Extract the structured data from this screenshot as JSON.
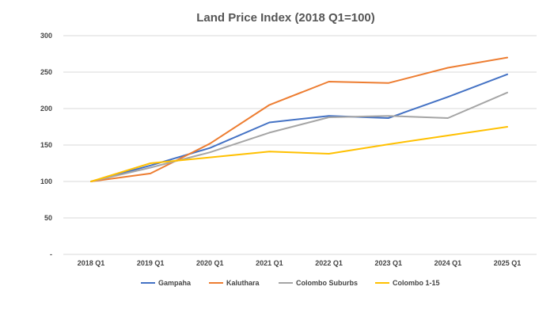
{
  "chart_data": {
    "type": "line",
    "title": "Land Price Index (2018 Q1=100)",
    "xlabel": "",
    "ylabel": "",
    "categories": [
      "2018 Q1",
      "2019 Q1",
      "2020 Q1",
      "2021 Q1",
      "2022 Q1",
      "2023 Q1",
      "2024 Q1",
      "2025 Q1"
    ],
    "y_ticks": [
      "-",
      "50",
      "100",
      "150",
      "200",
      "250",
      "300"
    ],
    "ylim": [
      0,
      300
    ],
    "grid": true,
    "legend_position": "bottom",
    "series": [
      {
        "name": "Gampaha",
        "color": "#4472C4",
        "values": [
          100,
          122,
          146,
          181,
          190,
          187,
          216,
          247
        ]
      },
      {
        "name": "Kaluthara",
        "color": "#ED7D31",
        "values": [
          100,
          111,
          152,
          205,
          237,
          235,
          256,
          270
        ]
      },
      {
        "name": "Colombo Suburbs",
        "color": "#A5A5A5",
        "values": [
          100,
          119,
          140,
          167,
          188,
          190,
          187,
          222
        ]
      },
      {
        "name": "Colombo 1-15",
        "color": "#FFC000",
        "values": [
          100,
          125,
          133,
          141,
          138,
          151,
          163,
          175
        ]
      }
    ]
  }
}
